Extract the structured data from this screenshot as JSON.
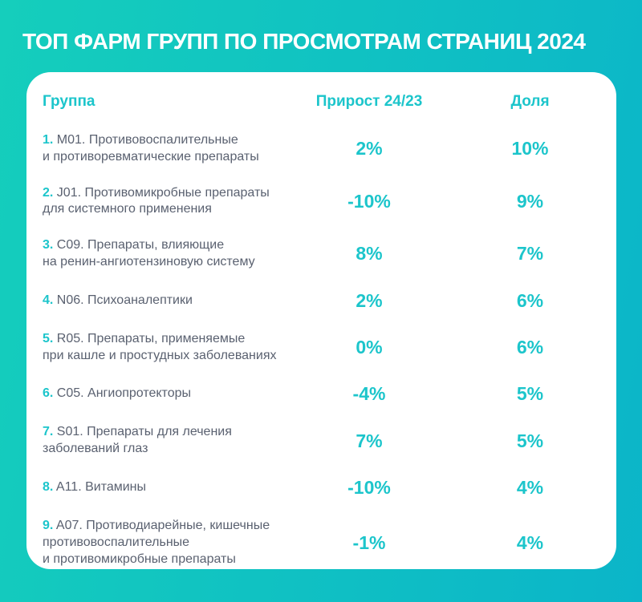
{
  "title": "ТОП ФАРМ ГРУПП ПО ПРОСМОТРАМ СТРАНИЦ 2024",
  "chart_data": {
    "type": "table",
    "title": "ТОП ФАРМ ГРУПП ПО ПРОСМОТРАМ СТРАНИЦ 2024",
    "columns": {
      "group": "Группа",
      "growth": "Прирост 24/23",
      "share": "Доля"
    },
    "rows": [
      {
        "rank": "1.",
        "group": "M01. Противовоспалительные\nи противоревматические препараты",
        "growth": 2,
        "growth_label": "2%",
        "share": 10,
        "share_label": "10%"
      },
      {
        "rank": "2.",
        "group": "J01. Противомикробные препараты\nдля системного применения",
        "growth": -10,
        "growth_label": "-10%",
        "share": 9,
        "share_label": "9%"
      },
      {
        "rank": "3.",
        "group": "C09. Препараты, влияющие\nна ренин-ангиотензиновую систему",
        "growth": 8,
        "growth_label": "8%",
        "share": 7,
        "share_label": "7%"
      },
      {
        "rank": "4.",
        "group": "N06. Психоаналептики",
        "growth": 2,
        "growth_label": "2%",
        "share": 6,
        "share_label": "6%"
      },
      {
        "rank": "5.",
        "group": "R05. Препараты, применяемые\nпри кашле и простудных заболеваниях",
        "growth": 0,
        "growth_label": "0%",
        "share": 6,
        "share_label": "6%"
      },
      {
        "rank": "6.",
        "group": "C05. Ангиопротекторы",
        "growth": -4,
        "growth_label": "-4%",
        "share": 5,
        "share_label": "5%"
      },
      {
        "rank": "7.",
        "group": "S01. Препараты для лечения\nзаболеваний глаз",
        "growth": 7,
        "growth_label": "7%",
        "share": 5,
        "share_label": "5%"
      },
      {
        "rank": "8.",
        "group": "A11. Витамины",
        "growth": -10,
        "growth_label": "-10%",
        "share": 4,
        "share_label": "4%"
      },
      {
        "rank": "9.",
        "group": "A07. Противодиарейные, кишечные\nпротивовоспалительные\nи противомикробные препараты",
        "growth": -1,
        "growth_label": "-1%",
        "share": 4,
        "share_label": "4%"
      }
    ]
  },
  "colors": {
    "bg_from": "#15CEBC",
    "bg_to": "#0BB5C9",
    "card": "#FFFFFF",
    "accent": "#1CC5CB",
    "text": "#5A6170",
    "title_color": "#FFFFFF"
  }
}
